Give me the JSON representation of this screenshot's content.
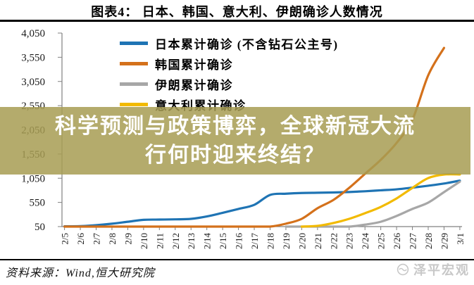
{
  "overlay": {
    "line1": "科学预测与政策博弈，全球新冠大流",
    "line2": "行何时迎来终结？",
    "band_color": "#A79C52",
    "text_color": "#FFFFFF"
  },
  "footer": {
    "source": "资料来源：Wind,恒大研究院",
    "watermark": "泽平宏观"
  },
  "chart_data": {
    "type": "line",
    "title": "图表4： 日本、韩国、意大利、伊朗确诊人数情况",
    "xlabel": "",
    "ylabel": "",
    "grid": false,
    "smooth": true,
    "legend_position": "upper-left-inside",
    "ylim": [
      50,
      4050
    ],
    "yticks": [
      "4,050",
      "3,550",
      "3,050",
      "2,550",
      "2,050",
      "1,550",
      "1,050",
      "550",
      "50"
    ],
    "ytick_values": [
      4050,
      3550,
      3050,
      2550,
      2050,
      1550,
      1050,
      550,
      50
    ],
    "x": [
      "2/5",
      "2/6",
      "2/7",
      "2/8",
      "2/9",
      "2/10",
      "2/11",
      "2/12",
      "2/13",
      "2/14",
      "2/15",
      "2/16",
      "2/17",
      "2/18",
      "2/19",
      "2/20",
      "2/21",
      "2/22",
      "2/23",
      "2/24",
      "2/25",
      "2/26",
      "2/27",
      "2/28",
      "2/29",
      "3/1"
    ],
    "series": [
      {
        "name": "日本累计确诊 (不含钻石公主号)",
        "color": "#1F74B4",
        "values": [
          55,
          60,
          80,
          110,
          150,
          190,
          195,
          200,
          210,
          260,
          335,
          415,
          500,
          705,
          730,
          745,
          750,
          755,
          765,
          780,
          800,
          820,
          855,
          895,
          940,
          1000
        ]
      },
      {
        "name": "韩国累计确诊",
        "color": "#D4711B",
        "values": [
          23,
          23,
          24,
          24,
          27,
          27,
          28,
          28,
          28,
          28,
          28,
          29,
          30,
          35,
          110,
          210,
          430,
          600,
          850,
          1140,
          1430,
          1780,
          2260,
          3177,
          3744,
          null
        ]
      },
      {
        "name": "伊朗累计确诊",
        "color": "#A7A7A7",
        "values": [
          null,
          null,
          null,
          null,
          null,
          null,
          null,
          null,
          null,
          null,
          null,
          null,
          null,
          null,
          2,
          5,
          18,
          30,
          50,
          90,
          150,
          270,
          415,
          545,
          763,
          978
        ]
      },
      {
        "name": "意大利累计确诊",
        "color": "#F2BA00",
        "values": [
          null,
          null,
          null,
          null,
          null,
          null,
          null,
          null,
          null,
          null,
          null,
          null,
          null,
          null,
          null,
          10,
          65,
          123,
          210,
          326,
          457,
          632,
          850,
          1053,
          1126,
          1128
        ]
      }
    ]
  }
}
